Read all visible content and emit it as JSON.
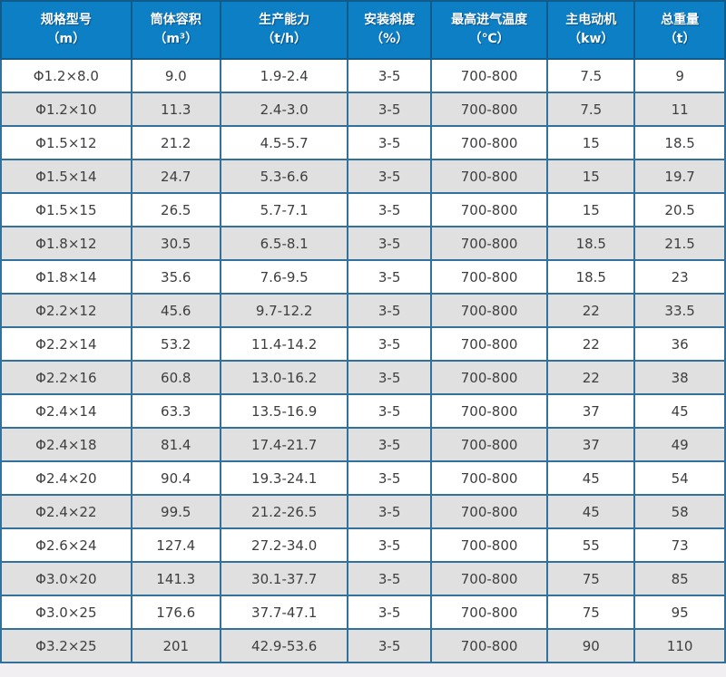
{
  "colors": {
    "header_bg": "#0d7fc5",
    "header_text": "#ffffff",
    "header_border": "#0f5c8c",
    "body_border": "#31719c",
    "row_bg": "#ffffff",
    "row_alt_bg": "#e0e0e0",
    "body_text": "#3e3e3e",
    "page_bg": "#f1eff1"
  },
  "table": {
    "columns": [
      {
        "key": "model",
        "label": "规格型号",
        "unit": "（m）"
      },
      {
        "key": "volume",
        "label": "筒体容积",
        "unit": "（m³）"
      },
      {
        "key": "capacity",
        "label": "生产能力",
        "unit": "（t/h）"
      },
      {
        "key": "slope",
        "label": "安装斜度",
        "unit": "（%）"
      },
      {
        "key": "max-inlet-temp",
        "label": "最高进气温度",
        "unit": "（℃）"
      },
      {
        "key": "main-motor",
        "label": "主电动机",
        "unit": "（kw）"
      },
      {
        "key": "total-weight",
        "label": "总重量",
        "unit": "（t）"
      }
    ],
    "rows": [
      [
        "Φ1.2×8.0",
        "9.0",
        "1.9-2.4",
        "3-5",
        "700-800",
        "7.5",
        "9"
      ],
      [
        "Φ1.2×10",
        "11.3",
        "2.4-3.0",
        "3-5",
        "700-800",
        "7.5",
        "11"
      ],
      [
        "Φ1.5×12",
        "21.2",
        "4.5-5.7",
        "3-5",
        "700-800",
        "15",
        "18.5"
      ],
      [
        "Φ1.5×14",
        "24.7",
        "5.3-6.6",
        "3-5",
        "700-800",
        "15",
        "19.7"
      ],
      [
        "Φ1.5×15",
        "26.5",
        "5.7-7.1",
        "3-5",
        "700-800",
        "15",
        "20.5"
      ],
      [
        "Φ1.8×12",
        "30.5",
        "6.5-8.1",
        "3-5",
        "700-800",
        "18.5",
        "21.5"
      ],
      [
        "Φ1.8×14",
        "35.6",
        "7.6-9.5",
        "3-5",
        "700-800",
        "18.5",
        "23"
      ],
      [
        "Φ2.2×12",
        "45.6",
        "9.7-12.2",
        "3-5",
        "700-800",
        "22",
        "33.5"
      ],
      [
        "Φ2.2×14",
        "53.2",
        "11.4-14.2",
        "3-5",
        "700-800",
        "22",
        "36"
      ],
      [
        "Φ2.2×16",
        "60.8",
        "13.0-16.2",
        "3-5",
        "700-800",
        "22",
        "38"
      ],
      [
        "Φ2.4×14",
        "63.3",
        "13.5-16.9",
        "3-5",
        "700-800",
        "37",
        "45"
      ],
      [
        "Φ2.4×18",
        "81.4",
        "17.4-21.7",
        "3-5",
        "700-800",
        "37",
        "49"
      ],
      [
        "Φ2.4×20",
        "90.4",
        "19.3-24.1",
        "3-5",
        "700-800",
        "45",
        "54"
      ],
      [
        "Φ2.4×22",
        "99.5",
        "21.2-26.5",
        "3-5",
        "700-800",
        "45",
        "58"
      ],
      [
        "Φ2.6×24",
        "127.4",
        "27.2-34.0",
        "3-5",
        "700-800",
        "55",
        "73"
      ],
      [
        "Φ3.0×20",
        "141.3",
        "30.1-37.7",
        "3-5",
        "700-800",
        "75",
        "85"
      ],
      [
        "Φ3.0×25",
        "176.6",
        "37.7-47.1",
        "3-5",
        "700-800",
        "75",
        "95"
      ],
      [
        "Φ3.2×25",
        "201",
        "42.9-53.6",
        "3-5",
        "700-800",
        "90",
        "110"
      ]
    ]
  }
}
